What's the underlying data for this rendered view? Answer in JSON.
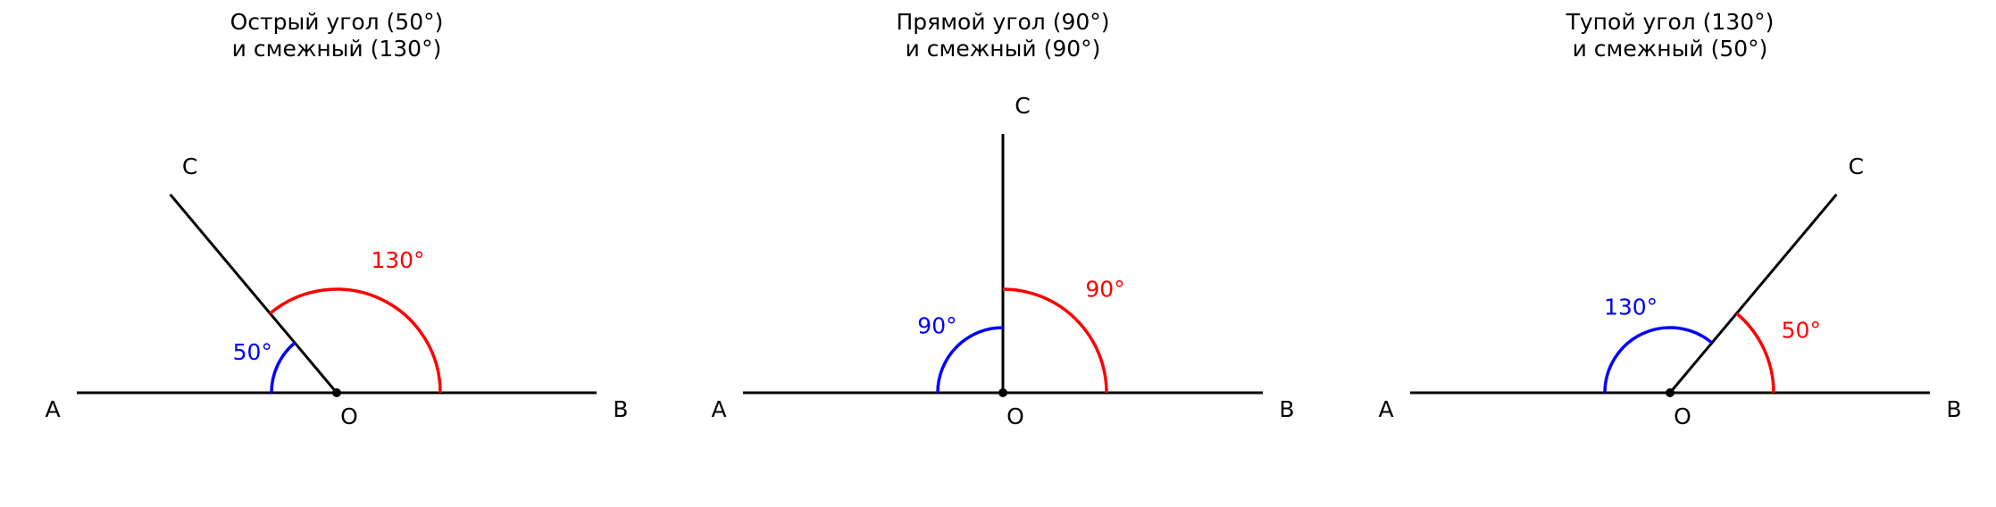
{
  "panels": [
    {
      "title": [
        "Острый угол (50°)",
        "и смежный (130°)"
      ],
      "angle": 50,
      "angle_label": "50°",
      "adjacent_label": "130°",
      "points": {
        "A": "A",
        "B": "B",
        "C": "C",
        "O": "O"
      }
    },
    {
      "title": [
        "Прямой угол (90°)",
        "и смежный (90°)"
      ],
      "angle": 90,
      "angle_label": "90°",
      "adjacent_label": "90°",
      "points": {
        "A": "A",
        "B": "B",
        "C": "C",
        "O": "O"
      }
    },
    {
      "title": [
        "Тупой угол (130°)",
        "и смежный (50°)"
      ],
      "angle": 130,
      "angle_label": "130°",
      "adjacent_label": "50°",
      "points": {
        "A": "A",
        "B": "B",
        "C": "C",
        "O": "O"
      }
    }
  ]
}
